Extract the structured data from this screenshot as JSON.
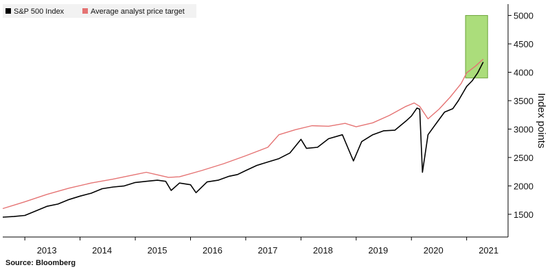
{
  "chart_data": {
    "type": "line",
    "ylabel": "Index points",
    "xlabel": "",
    "ylim": [
      1100,
      5200
    ],
    "xlim": [
      2012.6,
      2021.75
    ],
    "yticks": [
      1500,
      2000,
      2500,
      3000,
      3500,
      4000,
      4500,
      5000
    ],
    "xticks": [
      {
        "label": "2013",
        "value": 2013.0
      },
      {
        "label": "2014",
        "value": 2014.0
      },
      {
        "label": "2015",
        "value": 2015.0
      },
      {
        "label": "2016",
        "value": 2016.0
      },
      {
        "label": "2017",
        "value": 2017.0
      },
      {
        "label": "2018",
        "value": 2018.0
      },
      {
        "label": "2019",
        "value": 2019.0
      },
      {
        "label": "2020",
        "value": 2020.0
      },
      {
        "label": "2021",
        "value": 2021.0
      }
    ],
    "grid": false,
    "legend_position": "top-left",
    "series": [
      {
        "name": "S&P 500 Index",
        "color": "#000000",
        "x": [
          2012.6,
          2012.8,
          2013.0,
          2013.2,
          2013.4,
          2013.6,
          2013.8,
          2014.0,
          2014.2,
          2014.4,
          2014.6,
          2014.8,
          2015.0,
          2015.2,
          2015.4,
          2015.55,
          2015.65,
          2015.8,
          2016.0,
          2016.1,
          2016.3,
          2016.5,
          2016.7,
          2016.85,
          2017.0,
          2017.2,
          2017.4,
          2017.6,
          2017.8,
          2018.0,
          2018.1,
          2018.3,
          2018.5,
          2018.75,
          2018.95,
          2019.1,
          2019.3,
          2019.5,
          2019.7,
          2019.9,
          2020.0,
          2020.1,
          2020.15,
          2020.2,
          2020.3,
          2020.45,
          2020.6,
          2020.75,
          2020.85,
          2021.0,
          2021.1,
          2021.2,
          2021.3
        ],
        "values": [
          1450,
          1460,
          1480,
          1560,
          1640,
          1680,
          1760,
          1820,
          1870,
          1950,
          1980,
          2000,
          2060,
          2080,
          2100,
          2080,
          1920,
          2050,
          2020,
          1880,
          2070,
          2100,
          2170,
          2200,
          2270,
          2360,
          2420,
          2480,
          2580,
          2820,
          2660,
          2680,
          2830,
          2900,
          2440,
          2780,
          2900,
          2970,
          2980,
          3140,
          3230,
          3370,
          3350,
          2240,
          2900,
          3100,
          3300,
          3360,
          3500,
          3750,
          3850,
          3990,
          4180
        ]
      },
      {
        "name": "Average analyst price target",
        "color": "#e57373",
        "x": [
          2012.6,
          2012.8,
          2013.0,
          2013.4,
          2013.8,
          2014.2,
          2014.6,
          2015.0,
          2015.2,
          2015.6,
          2015.8,
          2016.2,
          2016.6,
          2017.0,
          2017.4,
          2017.6,
          2017.9,
          2018.2,
          2018.5,
          2018.8,
          2019.0,
          2019.3,
          2019.6,
          2019.9,
          2020.0,
          2020.05,
          2020.15,
          2020.3,
          2020.5,
          2020.7,
          2020.9,
          2021.0,
          2021.15,
          2021.3
        ],
        "values": [
          1600,
          1660,
          1720,
          1850,
          1960,
          2050,
          2120,
          2200,
          2240,
          2150,
          2160,
          2270,
          2390,
          2530,
          2680,
          2900,
          2990,
          3060,
          3050,
          3100,
          3040,
          3110,
          3240,
          3400,
          3440,
          3460,
          3400,
          3180,
          3350,
          3560,
          3800,
          3990,
          4100,
          4230
        ]
      }
    ],
    "highlight": {
      "x_start": 2020.98,
      "x_end": 2021.38,
      "y_start": 3900,
      "y_end": 5000,
      "color": "#8fd14f"
    }
  },
  "footer": {
    "source": "Source: Bloomberg"
  }
}
